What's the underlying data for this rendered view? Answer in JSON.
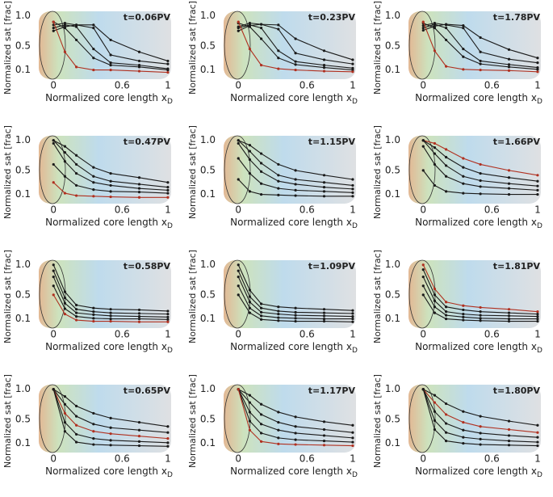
{
  "chart_data": [
    {
      "type": "line",
      "title": "t=0.06PV",
      "ylabel": "Normalized sat [frac]",
      "xlabel": "Normalized core length x",
      "xlabel_sub": "D",
      "x": [
        0,
        0.1,
        0.2,
        0.35,
        0.5,
        0.75,
        1
      ],
      "xlim": [
        -0.15,
        1.05
      ],
      "ylim": [
        0,
        1.05
      ],
      "xticks": [
        0,
        0.6,
        1
      ],
      "yticks": [
        0.1,
        0.5,
        {
          "value": 1,
          "label": "1.0"
        }
      ],
      "series": [
        {
          "color": "#1a1a1a",
          "values": [
            0.85,
            0.88,
            0.85,
            0.8,
            0.35,
            0.25,
            0.2
          ]
        },
        {
          "color": "#1a1a1a",
          "values": [
            0.8,
            0.85,
            0.82,
            0.45,
            0.22,
            0.18,
            0.12
          ]
        },
        {
          "color": "#1a1a1a",
          "values": [
            0.9,
            0.8,
            0.6,
            0.3,
            0.18,
            0.15,
            0.1
          ]
        },
        {
          "color": "#1a1a1a",
          "values": [
            0.75,
            0.82,
            0.85,
            0.85,
            0.6,
            0.4,
            0.25
          ]
        },
        {
          "color": "#b03020",
          "values": [
            0.9,
            0.4,
            0.15,
            0.1,
            0.1,
            0.08,
            0.06
          ]
        }
      ]
    },
    {
      "type": "line",
      "title": "t=0.23PV",
      "ylabel": "Normalized sat [frac]",
      "xlabel": "Normalized core length x",
      "xlabel_sub": "D",
      "x": [
        0,
        0.1,
        0.2,
        0.35,
        0.5,
        0.75,
        1
      ],
      "xlim": [
        -0.15,
        1.05
      ],
      "ylim": [
        0,
        1.05
      ],
      "xticks": [
        0,
        0.6,
        1
      ],
      "yticks": [
        0.1,
        0.5,
        {
          "value": 1,
          "label": "1.0"
        }
      ],
      "series": [
        {
          "color": "#1a1a1a",
          "values": [
            0.82,
            0.88,
            0.86,
            0.78,
            0.38,
            0.27,
            0.2
          ]
        },
        {
          "color": "#1a1a1a",
          "values": [
            0.8,
            0.85,
            0.8,
            0.42,
            0.24,
            0.18,
            0.13
          ]
        },
        {
          "color": "#1a1a1a",
          "values": [
            0.88,
            0.82,
            0.62,
            0.3,
            0.19,
            0.14,
            0.1
          ]
        },
        {
          "color": "#1a1a1a",
          "values": [
            0.75,
            0.84,
            0.86,
            0.85,
            0.62,
            0.42,
            0.27
          ]
        },
        {
          "color": "#b03020",
          "values": [
            0.9,
            0.45,
            0.18,
            0.12,
            0.1,
            0.08,
            0.07
          ]
        }
      ]
    },
    {
      "type": "line",
      "title": "t=1.78PV",
      "ylabel": "Normalized sat [frac]",
      "xlabel": "Normalized core length x",
      "xlabel_sub": "D",
      "x": [
        0,
        0.1,
        0.2,
        0.35,
        0.5,
        0.75,
        1
      ],
      "xlim": [
        -0.15,
        1.05
      ],
      "ylim": [
        0,
        1.05
      ],
      "xticks": [
        0,
        0.6,
        1
      ],
      "yticks": [
        0.1,
        0.5,
        {
          "value": 1,
          "label": "1.0"
        }
      ],
      "series": [
        {
          "color": "#1a1a1a",
          "values": [
            0.84,
            0.88,
            0.85,
            0.8,
            0.4,
            0.28,
            0.22
          ]
        },
        {
          "color": "#1a1a1a",
          "values": [
            0.8,
            0.86,
            0.8,
            0.45,
            0.25,
            0.19,
            0.14
          ]
        },
        {
          "color": "#1a1a1a",
          "values": [
            0.88,
            0.8,
            0.6,
            0.32,
            0.2,
            0.15,
            0.11
          ]
        },
        {
          "color": "#1a1a1a",
          "values": [
            0.76,
            0.83,
            0.86,
            0.84,
            0.64,
            0.44,
            0.3
          ]
        },
        {
          "color": "#b03020",
          "values": [
            0.9,
            0.42,
            0.16,
            0.11,
            0.1,
            0.09,
            0.07
          ]
        }
      ]
    },
    {
      "type": "line",
      "title": "t=0.47PV",
      "ylabel": "Normalized sat [frac]",
      "xlabel": "Normalized core length x",
      "xlabel_sub": "D",
      "x": [
        0,
        0.1,
        0.2,
        0.35,
        0.5,
        0.75,
        1
      ],
      "xlim": [
        -0.15,
        1.05
      ],
      "ylim": [
        0,
        1.05
      ],
      "xticks": [
        0,
        0.6,
        1
      ],
      "yticks": [
        0.1,
        0.5,
        {
          "value": 1,
          "label": "1.0"
        }
      ],
      "series": [
        {
          "color": "#1a1a1a",
          "values": [
            1,
            0.9,
            0.75,
            0.55,
            0.45,
            0.38,
            0.3
          ]
        },
        {
          "color": "#1a1a1a",
          "values": [
            1,
            0.8,
            0.6,
            0.4,
            0.32,
            0.27,
            0.22
          ]
        },
        {
          "color": "#1a1a1a",
          "values": [
            0.95,
            0.65,
            0.45,
            0.3,
            0.25,
            0.2,
            0.17
          ]
        },
        {
          "color": "#1a1a1a",
          "values": [
            0.6,
            0.4,
            0.25,
            0.18,
            0.15,
            0.14,
            0.12
          ]
        },
        {
          "color": "#b03020",
          "values": [
            0.3,
            0.12,
            0.08,
            0.07,
            0.06,
            0.05,
            0.05
          ]
        }
      ]
    },
    {
      "type": "line",
      "title": "t=1.15PV",
      "ylabel": "Normalized sat [frac]",
      "xlabel": "Normalized core length x",
      "xlabel_sub": "D",
      "x": [
        0,
        0.1,
        0.2,
        0.35,
        0.5,
        0.75,
        1
      ],
      "xlim": [
        -0.15,
        1.05
      ],
      "ylim": [
        0,
        1.05
      ],
      "xticks": [
        0,
        0.6,
        1
      ],
      "yticks": [
        0.1,
        0.5,
        {
          "value": 1,
          "label": "1.0"
        }
      ],
      "series": [
        {
          "color": "#1a1a1a",
          "values": [
            1,
            0.92,
            0.78,
            0.6,
            0.5,
            0.42,
            0.35
          ]
        },
        {
          "color": "#1a1a1a",
          "values": [
            1,
            0.82,
            0.62,
            0.42,
            0.35,
            0.3,
            0.25
          ]
        },
        {
          "color": "#1a1a1a",
          "values": [
            0.95,
            0.68,
            0.48,
            0.32,
            0.27,
            0.22,
            0.19
          ]
        },
        {
          "color": "#1a1a1a",
          "values": [
            0.7,
            0.45,
            0.28,
            0.2,
            0.17,
            0.15,
            0.13
          ]
        },
        {
          "color": "#1a1a1a",
          "values": [
            0.35,
            0.15,
            0.1,
            0.09,
            0.08,
            0.07,
            0.07
          ]
        }
      ]
    },
    {
      "type": "line",
      "title": "t=1.66PV",
      "ylabel": "Normalized sat [frac]",
      "xlabel": "Normalized core length x",
      "xlabel_sub": "D",
      "x": [
        0,
        0.1,
        0.2,
        0.35,
        0.5,
        0.75,
        1
      ],
      "xlim": [
        -0.15,
        1.05
      ],
      "ylim": [
        0,
        1.05
      ],
      "xticks": [
        0,
        0.6,
        1
      ],
      "yticks": [
        0.1,
        0.5,
        {
          "value": 1,
          "label": "1.0"
        }
      ],
      "series": [
        {
          "color": "#b03020",
          "values": [
            1,
            0.95,
            0.85,
            0.7,
            0.6,
            0.5,
            0.42
          ]
        },
        {
          "color": "#1a1a1a",
          "values": [
            1,
            0.88,
            0.72,
            0.55,
            0.45,
            0.38,
            0.32
          ]
        },
        {
          "color": "#1a1a1a",
          "values": [
            1,
            0.78,
            0.58,
            0.4,
            0.33,
            0.28,
            0.24
          ]
        },
        {
          "color": "#1a1a1a",
          "values": [
            0.9,
            0.6,
            0.4,
            0.28,
            0.23,
            0.2,
            0.17
          ]
        },
        {
          "color": "#1a1a1a",
          "values": [
            0.5,
            0.25,
            0.15,
            0.12,
            0.11,
            0.1,
            0.1
          ]
        }
      ]
    },
    {
      "type": "line",
      "title": "t=0.58PV",
      "ylabel": "Normalized sat [frac]",
      "xlabel": "Normalized core length x",
      "xlabel_sub": "D",
      "x": [
        0,
        0.1,
        0.2,
        0.35,
        0.5,
        0.75,
        1
      ],
      "xlim": [
        -0.15,
        1.05
      ],
      "ylim": [
        0,
        1.05
      ],
      "xticks": [
        0,
        0.6,
        1
      ],
      "yticks": [
        0.1,
        0.5,
        {
          "value": 1,
          "label": "1.0"
        }
      ],
      "series": [
        {
          "color": "#1a1a1a",
          "values": [
            1,
            0.55,
            0.33,
            0.28,
            0.26,
            0.25,
            0.23
          ]
        },
        {
          "color": "#1a1a1a",
          "values": [
            0.9,
            0.45,
            0.26,
            0.22,
            0.2,
            0.19,
            0.18
          ]
        },
        {
          "color": "#1a1a1a",
          "values": [
            0.8,
            0.36,
            0.2,
            0.17,
            0.15,
            0.14,
            0.13
          ]
        },
        {
          "color": "#1a1a1a",
          "values": [
            0.65,
            0.27,
            0.14,
            0.11,
            0.1,
            0.1,
            0.09
          ]
        },
        {
          "color": "#b03020",
          "values": [
            0.5,
            0.18,
            0.08,
            0.06,
            0.06,
            0.05,
            0.05
          ]
        }
      ]
    },
    {
      "type": "line",
      "title": "t=1.09PV",
      "ylabel": "Normalized sat [frac]",
      "xlabel": "Normalized core length x",
      "xlabel_sub": "D",
      "x": [
        0,
        0.1,
        0.2,
        0.35,
        0.5,
        0.75,
        1
      ],
      "xlim": [
        -0.15,
        1.05
      ],
      "ylim": [
        0,
        1.05
      ],
      "xticks": [
        0,
        0.6,
        1
      ],
      "yticks": [
        0.1,
        0.5,
        {
          "value": 1,
          "label": "1.0"
        }
      ],
      "series": [
        {
          "color": "#1a1a1a",
          "values": [
            1,
            0.58,
            0.35,
            0.3,
            0.28,
            0.26,
            0.24
          ]
        },
        {
          "color": "#1a1a1a",
          "values": [
            0.9,
            0.47,
            0.28,
            0.23,
            0.21,
            0.2,
            0.19
          ]
        },
        {
          "color": "#1a1a1a",
          "values": [
            0.8,
            0.38,
            0.21,
            0.18,
            0.16,
            0.15,
            0.14
          ]
        },
        {
          "color": "#1a1a1a",
          "values": [
            0.65,
            0.28,
            0.15,
            0.12,
            0.11,
            0.1,
            0.1
          ]
        },
        {
          "color": "#1a1a1a",
          "values": [
            0.5,
            0.2,
            0.09,
            0.07,
            0.06,
            0.06,
            0.05
          ]
        }
      ]
    },
    {
      "type": "line",
      "title": "t=1.81PV",
      "ylabel": "Normalized sat [frac]",
      "xlabel": "Normalized core length x",
      "xlabel_sub": "D",
      "x": [
        0,
        0.1,
        0.2,
        0.35,
        0.5,
        0.75,
        1
      ],
      "xlim": [
        -0.15,
        1.05
      ],
      "ylim": [
        0,
        1.05
      ],
      "xticks": [
        0,
        0.6,
        1
      ],
      "yticks": [
        0.1,
        0.5,
        {
          "value": 1,
          "label": "1.0"
        }
      ],
      "series": [
        {
          "color": "#b03020",
          "values": [
            1,
            0.6,
            0.38,
            0.32,
            0.29,
            0.26,
            0.22
          ]
        },
        {
          "color": "#1a1a1a",
          "values": [
            0.92,
            0.5,
            0.3,
            0.25,
            0.22,
            0.2,
            0.18
          ]
        },
        {
          "color": "#1a1a1a",
          "values": [
            0.8,
            0.4,
            0.22,
            0.18,
            0.16,
            0.15,
            0.14
          ]
        },
        {
          "color": "#1a1a1a",
          "values": [
            0.65,
            0.3,
            0.16,
            0.13,
            0.11,
            0.1,
            0.1
          ]
        },
        {
          "color": "#1a1a1a",
          "values": [
            0.5,
            0.2,
            0.1,
            0.08,
            0.07,
            0.06,
            0.06
          ]
        }
      ]
    },
    {
      "type": "line",
      "title": "t=0.65PV",
      "ylabel": "Normalized sat [frac]",
      "xlabel": "Normalized core length x",
      "xlabel_sub": "D",
      "x": [
        0,
        0.1,
        0.2,
        0.35,
        0.5,
        0.75,
        1
      ],
      "xlim": [
        -0.15,
        1.05
      ],
      "ylim": [
        0,
        1.05
      ],
      "xticks": [
        0,
        0.6,
        1
      ],
      "yticks": [
        0.1,
        0.5,
        {
          "value": 1,
          "label": "1.0"
        }
      ],
      "series": [
        {
          "color": "#1a1a1a",
          "values": [
            1,
            0.88,
            0.72,
            0.6,
            0.52,
            0.45,
            0.38
          ]
        },
        {
          "color": "#1a1a1a",
          "values": [
            1,
            0.75,
            0.55,
            0.42,
            0.36,
            0.32,
            0.28
          ]
        },
        {
          "color": "#b03020",
          "values": [
            1,
            0.6,
            0.4,
            0.3,
            0.26,
            0.22,
            0.18
          ]
        },
        {
          "color": "#1a1a1a",
          "values": [
            1,
            0.45,
            0.25,
            0.18,
            0.15,
            0.13,
            0.11
          ]
        },
        {
          "color": "#1a1a1a",
          "values": [
            1,
            0.3,
            0.12,
            0.08,
            0.07,
            0.06,
            0.05
          ]
        }
      ]
    },
    {
      "type": "line",
      "title": "t=1.17PV",
      "ylabel": "Normalized sat [frac]",
      "xlabel": "Normalized core length x",
      "xlabel_sub": "D",
      "x": [
        0,
        0.1,
        0.2,
        0.35,
        0.5,
        0.75,
        1
      ],
      "xlim": [
        -0.15,
        1.05
      ],
      "ylim": [
        0,
        1.05
      ],
      "xticks": [
        0,
        0.6,
        1
      ],
      "yticks": [
        0.1,
        0.5,
        {
          "value": 1,
          "label": "1.0"
        }
      ],
      "series": [
        {
          "color": "#1a1a1a",
          "values": [
            1,
            0.9,
            0.75,
            0.62,
            0.54,
            0.46,
            0.4
          ]
        },
        {
          "color": "#1a1a1a",
          "values": [
            1,
            0.78,
            0.58,
            0.45,
            0.38,
            0.33,
            0.28
          ]
        },
        {
          "color": "#1a1a1a",
          "values": [
            1,
            0.62,
            0.42,
            0.32,
            0.27,
            0.23,
            0.19
          ]
        },
        {
          "color": "#1a1a1a",
          "values": [
            1,
            0.47,
            0.27,
            0.19,
            0.16,
            0.14,
            0.12
          ]
        },
        {
          "color": "#b03020",
          "values": [
            1,
            0.32,
            0.13,
            0.09,
            0.08,
            0.07,
            0.06
          ]
        }
      ]
    },
    {
      "type": "line",
      "title": "t=1.80PV",
      "ylabel": "Normalized sat [frac]",
      "xlabel": "Normalized core length x",
      "xlabel_sub": "D",
      "x": [
        0,
        0.1,
        0.2,
        0.35,
        0.5,
        0.75,
        1
      ],
      "xlim": [
        -0.15,
        1.05
      ],
      "ylim": [
        0,
        1.05
      ],
      "xticks": [
        0,
        0.6,
        1
      ],
      "yticks": [
        0.1,
        0.5,
        {
          "value": 1,
          "label": "1.0"
        }
      ],
      "series": [
        {
          "color": "#1a1a1a",
          "values": [
            1,
            0.9,
            0.76,
            0.63,
            0.55,
            0.47,
            0.4
          ]
        },
        {
          "color": "#b03020",
          "values": [
            1,
            0.78,
            0.58,
            0.45,
            0.38,
            0.33,
            0.28
          ]
        },
        {
          "color": "#1a1a1a",
          "values": [
            1,
            0.63,
            0.43,
            0.32,
            0.27,
            0.23,
            0.2
          ]
        },
        {
          "color": "#1a1a1a",
          "values": [
            1,
            0.48,
            0.28,
            0.2,
            0.17,
            0.14,
            0.12
          ]
        },
        {
          "color": "#1a1a1a",
          "values": [
            1,
            0.33,
            0.14,
            0.1,
            0.08,
            0.07,
            0.06
          ]
        }
      ]
    }
  ]
}
